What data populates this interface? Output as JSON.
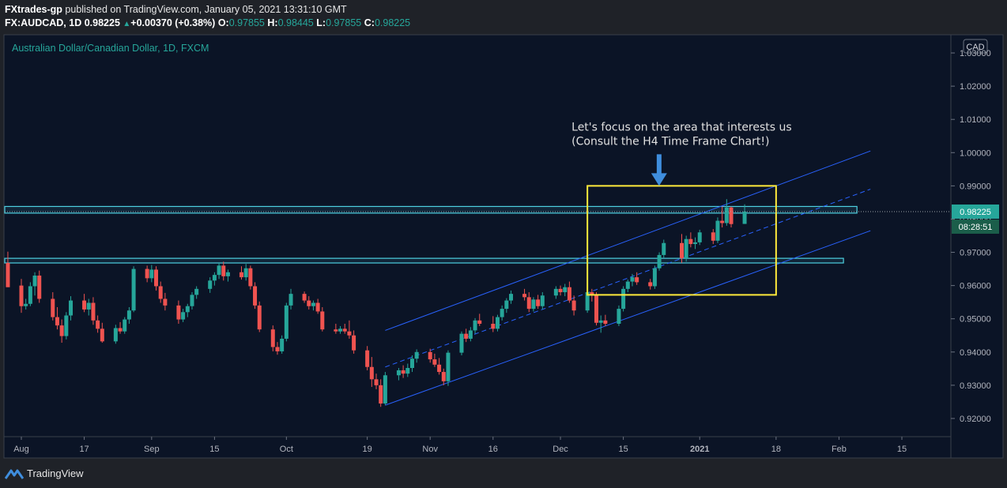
{
  "header": {
    "publisher": "FXtrades-gp",
    "published_text": "published on TradingView.com, January 05, 2021 13:31:10 GMT",
    "symbol": "FX:AUDCAD, 1D",
    "last": "0.98225",
    "change": "+0.00370 (+0.38%)",
    "o_label": "O:",
    "o": "0.97855",
    "h_label": "H:",
    "h": "0.98445",
    "l_label": "L:",
    "l": "0.97855",
    "c_label": "C:",
    "c": "0.98225"
  },
  "footer": {
    "brand": "TradingView"
  },
  "colors": {
    "bg": "#0b1426",
    "up": "#26a69a",
    "down": "#ef5350",
    "channel": "#2962ff",
    "zone": "#4dd0e1",
    "box": "#ffeb3b",
    "arrow": "#3f8ede",
    "text": "#e0e0e0"
  },
  "chart_data": {
    "type": "candlestick",
    "title": "Australian Dollar/Canadian Dollar, 1D, FXCM",
    "currency": "CAD",
    "ylim": [
      0.915,
      1.035
    ],
    "y_ticks": [
      "1.03000",
      "1.02000",
      "1.01000",
      "1.00000",
      "0.99000",
      "0.98000",
      "0.97000",
      "0.96000",
      "0.95000",
      "0.94000",
      "0.93000",
      "0.92000"
    ],
    "x_ticks": [
      {
        "label": "Aug",
        "date": "2020-08-03"
      },
      {
        "label": "17",
        "date": "2020-08-17"
      },
      {
        "label": "Sep",
        "date": "2020-09-01"
      },
      {
        "label": "15",
        "date": "2020-09-15"
      },
      {
        "label": "Oct",
        "date": "2020-10-01"
      },
      {
        "label": "19",
        "date": "2020-10-19"
      },
      {
        "label": "Nov",
        "date": "2020-11-02"
      },
      {
        "label": "16",
        "date": "2020-11-16"
      },
      {
        "label": "Dec",
        "date": "2020-12-01"
      },
      {
        "label": "15",
        "date": "2020-12-15"
      },
      {
        "label": "2021",
        "date": "2021-01-01"
      },
      {
        "label": "18",
        "date": "2021-01-18"
      },
      {
        "label": "Feb",
        "date": "2021-02-01"
      },
      {
        "label": "15",
        "date": "2021-02-15"
      }
    ],
    "last_price": "0.98225",
    "countdown": "08:28:51",
    "candles": [
      {
        "t": "2020-07-31",
        "o": 0.9668,
        "h": 0.9702,
        "l": 0.9605,
        "c": 0.9595
      },
      {
        "t": "2020-08-03",
        "o": 0.96,
        "h": 0.962,
        "l": 0.9518,
        "c": 0.9538
      },
      {
        "t": "2020-08-04",
        "o": 0.9538,
        "h": 0.956,
        "l": 0.9528,
        "c": 0.9545
      },
      {
        "t": "2020-08-05",
        "o": 0.9545,
        "h": 0.961,
        "l": 0.9538,
        "c": 0.9598
      },
      {
        "t": "2020-08-06",
        "o": 0.9598,
        "h": 0.964,
        "l": 0.957,
        "c": 0.963
      },
      {
        "t": "2020-08-07",
        "o": 0.963,
        "h": 0.9645,
        "l": 0.9548,
        "c": 0.956
      },
      {
        "t": "2020-08-10",
        "o": 0.956,
        "h": 0.958,
        "l": 0.9495,
        "c": 0.9505
      },
      {
        "t": "2020-08-11",
        "o": 0.9505,
        "h": 0.9535,
        "l": 0.9468,
        "c": 0.948
      },
      {
        "t": "2020-08-12",
        "o": 0.948,
        "h": 0.9498,
        "l": 0.9428,
        "c": 0.9448
      },
      {
        "t": "2020-08-13",
        "o": 0.9448,
        "h": 0.952,
        "l": 0.9438,
        "c": 0.951
      },
      {
        "t": "2020-08-14",
        "o": 0.951,
        "h": 0.9568,
        "l": 0.9495,
        "c": 0.9555
      },
      {
        "t": "2020-08-17",
        "o": 0.9555,
        "h": 0.9575,
        "l": 0.952,
        "c": 0.9528
      },
      {
        "t": "2020-08-18",
        "o": 0.9528,
        "h": 0.956,
        "l": 0.951,
        "c": 0.9548
      },
      {
        "t": "2020-08-19",
        "o": 0.9548,
        "h": 0.9565,
        "l": 0.9482,
        "c": 0.9495
      },
      {
        "t": "2020-08-20",
        "o": 0.9495,
        "h": 0.951,
        "l": 0.9458,
        "c": 0.947
      },
      {
        "t": "2020-08-21",
        "o": 0.947,
        "h": 0.9488,
        "l": 0.9428,
        "c": 0.9432
      },
      {
        "t": "2020-08-24",
        "o": 0.9432,
        "h": 0.9482,
        "l": 0.9425,
        "c": 0.9472
      },
      {
        "t": "2020-08-25",
        "o": 0.9472,
        "h": 0.949,
        "l": 0.9455,
        "c": 0.9462
      },
      {
        "t": "2020-08-26",
        "o": 0.9462,
        "h": 0.9505,
        "l": 0.9455,
        "c": 0.9498
      },
      {
        "t": "2020-08-27",
        "o": 0.9498,
        "h": 0.9535,
        "l": 0.9485,
        "c": 0.9525
      },
      {
        "t": "2020-08-28",
        "o": 0.9525,
        "h": 0.9658,
        "l": 0.952,
        "c": 0.965
      },
      {
        "t": "2020-08-31",
        "o": 0.965,
        "h": 0.966,
        "l": 0.961,
        "c": 0.9622
      },
      {
        "t": "2020-09-01",
        "o": 0.9622,
        "h": 0.9662,
        "l": 0.961,
        "c": 0.9648
      },
      {
        "t": "2020-09-02",
        "o": 0.9648,
        "h": 0.9658,
        "l": 0.9585,
        "c": 0.9598
      },
      {
        "t": "2020-09-03",
        "o": 0.9598,
        "h": 0.9612,
        "l": 0.9548,
        "c": 0.956
      },
      {
        "t": "2020-09-04",
        "o": 0.956,
        "h": 0.9578,
        "l": 0.9525,
        "c": 0.954
      },
      {
        "t": "2020-09-07",
        "o": 0.954,
        "h": 0.9555,
        "l": 0.9485,
        "c": 0.9498
      },
      {
        "t": "2020-09-08",
        "o": 0.9498,
        "h": 0.953,
        "l": 0.949,
        "c": 0.952
      },
      {
        "t": "2020-09-09",
        "o": 0.952,
        "h": 0.9545,
        "l": 0.9505,
        "c": 0.9538
      },
      {
        "t": "2020-09-10",
        "o": 0.9538,
        "h": 0.958,
        "l": 0.9528,
        "c": 0.9572
      },
      {
        "t": "2020-09-11",
        "o": 0.9572,
        "h": 0.9598,
        "l": 0.956,
        "c": 0.959
      },
      {
        "t": "2020-09-14",
        "o": 0.959,
        "h": 0.9625,
        "l": 0.9578,
        "c": 0.9615
      },
      {
        "t": "2020-09-15",
        "o": 0.9615,
        "h": 0.964,
        "l": 0.96,
        "c": 0.9632
      },
      {
        "t": "2020-09-16",
        "o": 0.9632,
        "h": 0.9668,
        "l": 0.962,
        "c": 0.966
      },
      {
        "t": "2020-09-17",
        "o": 0.966,
        "h": 0.9672,
        "l": 0.9615,
        "c": 0.9628
      },
      {
        "t": "2020-09-18",
        "o": 0.9628,
        "h": 0.9648,
        "l": 0.9612,
        "c": 0.964
      },
      {
        "t": "2020-09-21",
        "o": 0.964,
        "h": 0.9658,
        "l": 0.9618,
        "c": 0.9625
      },
      {
        "t": "2020-09-22",
        "o": 0.9625,
        "h": 0.9665,
        "l": 0.9615,
        "c": 0.9652
      },
      {
        "t": "2020-09-23",
        "o": 0.9652,
        "h": 0.966,
        "l": 0.9588,
        "c": 0.9598
      },
      {
        "t": "2020-09-24",
        "o": 0.9598,
        "h": 0.961,
        "l": 0.953,
        "c": 0.954
      },
      {
        "t": "2020-09-25",
        "o": 0.954,
        "h": 0.9552,
        "l": 0.946,
        "c": 0.9468
      },
      {
        "t": "2020-09-28",
        "o": 0.9468,
        "h": 0.948,
        "l": 0.9402,
        "c": 0.9415
      },
      {
        "t": "2020-09-29",
        "o": 0.9415,
        "h": 0.943,
        "l": 0.9392,
        "c": 0.9402
      },
      {
        "t": "2020-09-30",
        "o": 0.9402,
        "h": 0.945,
        "l": 0.9395,
        "c": 0.944
      },
      {
        "t": "2020-10-01",
        "o": 0.944,
        "h": 0.9548,
        "l": 0.9432,
        "c": 0.954
      },
      {
        "t": "2020-10-02",
        "o": 0.954,
        "h": 0.959,
        "l": 0.9528,
        "c": 0.9575
      },
      {
        "t": "2020-10-05",
        "o": 0.9575,
        "h": 0.9582,
        "l": 0.9548,
        "c": 0.9555
      },
      {
        "t": "2020-10-06",
        "o": 0.9555,
        "h": 0.9568,
        "l": 0.9528,
        "c": 0.9538
      },
      {
        "t": "2020-10-07",
        "o": 0.9538,
        "h": 0.9555,
        "l": 0.9525,
        "c": 0.9548
      },
      {
        "t": "2020-10-08",
        "o": 0.9548,
        "h": 0.956,
        "l": 0.9515,
        "c": 0.9522
      },
      {
        "t": "2020-10-09",
        "o": 0.9522,
        "h": 0.9535,
        "l": 0.9462,
        "c": 0.9468
      },
      {
        "t": "2020-10-12",
        "o": 0.9468,
        "h": 0.9485,
        "l": 0.9455,
        "c": 0.9462
      },
      {
        "t": "2020-10-13",
        "o": 0.9462,
        "h": 0.9478,
        "l": 0.9455,
        "c": 0.947
      },
      {
        "t": "2020-10-14",
        "o": 0.947,
        "h": 0.9485,
        "l": 0.9455,
        "c": 0.9462
      },
      {
        "t": "2020-10-15",
        "o": 0.9462,
        "h": 0.9495,
        "l": 0.944,
        "c": 0.945
      },
      {
        "t": "2020-10-16",
        "o": 0.945,
        "h": 0.9465,
        "l": 0.9395,
        "c": 0.9405
      },
      {
        "t": "2020-10-19",
        "o": 0.9405,
        "h": 0.9418,
        "l": 0.9345,
        "c": 0.9355
      },
      {
        "t": "2020-10-20",
        "o": 0.9355,
        "h": 0.9385,
        "l": 0.9295,
        "c": 0.9318
      },
      {
        "t": "2020-10-21",
        "o": 0.9318,
        "h": 0.9335,
        "l": 0.9288,
        "c": 0.93
      },
      {
        "t": "2020-10-22",
        "o": 0.93,
        "h": 0.9318,
        "l": 0.9235,
        "c": 0.9245
      },
      {
        "t": "2020-10-23",
        "o": 0.9245,
        "h": 0.934,
        "l": 0.924,
        "c": 0.933
      },
      {
        "t": "2020-10-26",
        "o": 0.933,
        "h": 0.9352,
        "l": 0.9315,
        "c": 0.9345
      },
      {
        "t": "2020-10-27",
        "o": 0.9345,
        "h": 0.936,
        "l": 0.9322,
        "c": 0.9335
      },
      {
        "t": "2020-10-28",
        "o": 0.9335,
        "h": 0.9365,
        "l": 0.9325,
        "c": 0.9352
      },
      {
        "t": "2020-10-29",
        "o": 0.9352,
        "h": 0.939,
        "l": 0.934,
        "c": 0.938
      },
      {
        "t": "2020-10-30",
        "o": 0.938,
        "h": 0.9408,
        "l": 0.9368,
        "c": 0.94
      },
      {
        "t": "2020-11-02",
        "o": 0.94,
        "h": 0.941,
        "l": 0.9368,
        "c": 0.9378
      },
      {
        "t": "2020-11-03",
        "o": 0.9378,
        "h": 0.9395,
        "l": 0.9355,
        "c": 0.9362
      },
      {
        "t": "2020-11-04",
        "o": 0.9362,
        "h": 0.9382,
        "l": 0.9332,
        "c": 0.934
      },
      {
        "t": "2020-11-05",
        "o": 0.934,
        "h": 0.935,
        "l": 0.93,
        "c": 0.9312
      },
      {
        "t": "2020-11-06",
        "o": 0.9312,
        "h": 0.9405,
        "l": 0.9298,
        "c": 0.9398
      },
      {
        "t": "2020-11-09",
        "o": 0.9398,
        "h": 0.9462,
        "l": 0.939,
        "c": 0.9455
      },
      {
        "t": "2020-11-10",
        "o": 0.9455,
        "h": 0.947,
        "l": 0.943,
        "c": 0.944
      },
      {
        "t": "2020-11-11",
        "o": 0.944,
        "h": 0.9475,
        "l": 0.9432,
        "c": 0.9465
      },
      {
        "t": "2020-11-12",
        "o": 0.9465,
        "h": 0.9502,
        "l": 0.9455,
        "c": 0.9495
      },
      {
        "t": "2020-11-13",
        "o": 0.9495,
        "h": 0.9515,
        "l": 0.9478,
        "c": 0.9485
      },
      {
        "t": "2020-11-16",
        "o": 0.9485,
        "h": 0.9508,
        "l": 0.946,
        "c": 0.947
      },
      {
        "t": "2020-11-17",
        "o": 0.947,
        "h": 0.9512,
        "l": 0.9462,
        "c": 0.9505
      },
      {
        "t": "2020-11-18",
        "o": 0.9505,
        "h": 0.954,
        "l": 0.9495,
        "c": 0.953
      },
      {
        "t": "2020-11-19",
        "o": 0.953,
        "h": 0.9562,
        "l": 0.9518,
        "c": 0.9555
      },
      {
        "t": "2020-11-20",
        "o": 0.9555,
        "h": 0.9585,
        "l": 0.9545,
        "c": 0.9575
      },
      {
        "t": "2020-11-23",
        "o": 0.9575,
        "h": 0.959,
        "l": 0.9555,
        "c": 0.9565
      },
      {
        "t": "2020-11-24",
        "o": 0.9565,
        "h": 0.958,
        "l": 0.952,
        "c": 0.953
      },
      {
        "t": "2020-11-25",
        "o": 0.953,
        "h": 0.9565,
        "l": 0.9522,
        "c": 0.9558
      },
      {
        "t": "2020-11-26",
        "o": 0.9558,
        "h": 0.9572,
        "l": 0.953,
        "c": 0.9538
      },
      {
        "t": "2020-11-27",
        "o": 0.9538,
        "h": 0.958,
        "l": 0.9528,
        "c": 0.957
      },
      {
        "t": "2020-11-30",
        "o": 0.957,
        "h": 0.9598,
        "l": 0.956,
        "c": 0.959
      },
      {
        "t": "2020-12-01",
        "o": 0.959,
        "h": 0.96,
        "l": 0.957,
        "c": 0.958
      },
      {
        "t": "2020-12-02",
        "o": 0.958,
        "h": 0.9605,
        "l": 0.9568,
        "c": 0.9595
      },
      {
        "t": "2020-12-03",
        "o": 0.9595,
        "h": 0.9612,
        "l": 0.9548,
        "c": 0.9555
      },
      {
        "t": "2020-12-04",
        "o": 0.9555,
        "h": 0.957,
        "l": 0.951,
        "c": 0.9525
      },
      {
        "t": "2020-12-07",
        "o": 0.9525,
        "h": 0.9588,
        "l": 0.9518,
        "c": 0.958
      },
      {
        "t": "2020-12-08",
        "o": 0.958,
        "h": 0.959,
        "l": 0.9552,
        "c": 0.9572
      },
      {
        "t": "2020-12-09",
        "o": 0.9572,
        "h": 0.958,
        "l": 0.948,
        "c": 0.9488
      },
      {
        "t": "2020-12-10",
        "o": 0.9488,
        "h": 0.951,
        "l": 0.9458,
        "c": 0.9495
      },
      {
        "t": "2020-12-11",
        "o": 0.9495,
        "h": 0.9512,
        "l": 0.9478,
        "c": 0.9485
      },
      {
        "t": "2020-12-14",
        "o": 0.9485,
        "h": 0.954,
        "l": 0.9478,
        "c": 0.953
      },
      {
        "t": "2020-12-15",
        "o": 0.953,
        "h": 0.9598,
        "l": 0.9522,
        "c": 0.959
      },
      {
        "t": "2020-12-16",
        "o": 0.959,
        "h": 0.9618,
        "l": 0.958,
        "c": 0.9612
      },
      {
        "t": "2020-12-17",
        "o": 0.9612,
        "h": 0.9635,
        "l": 0.9598,
        "c": 0.9625
      },
      {
        "t": "2020-12-18",
        "o": 0.9625,
        "h": 0.964,
        "l": 0.9602,
        "c": 0.961
      },
      {
        "t": "2020-12-21",
        "o": 0.961,
        "h": 0.962,
        "l": 0.9588,
        "c": 0.9598
      },
      {
        "t": "2020-12-22",
        "o": 0.9598,
        "h": 0.966,
        "l": 0.959,
        "c": 0.9652
      },
      {
        "t": "2020-12-23",
        "o": 0.9652,
        "h": 0.97,
        "l": 0.9645,
        "c": 0.9692
      },
      {
        "t": "2020-12-24",
        "o": 0.9692,
        "h": 0.9738,
        "l": 0.9682,
        "c": 0.9728
      },
      {
        "t": "2020-12-28",
        "o": 0.9728,
        "h": 0.9755,
        "l": 0.9668,
        "c": 0.9682
      },
      {
        "t": "2020-12-29",
        "o": 0.9682,
        "h": 0.975,
        "l": 0.9672,
        "c": 0.974
      },
      {
        "t": "2020-12-30",
        "o": 0.974,
        "h": 0.976,
        "l": 0.9715,
        "c": 0.9725
      },
      {
        "t": "2020-12-31",
        "o": 0.9725,
        "h": 0.9745,
        "l": 0.971,
        "c": 0.973
      },
      {
        "t": "2021-01-01",
        "o": 0.973,
        "h": 0.9768,
        "l": 0.9722,
        "c": 0.976
      },
      {
        "t": "2021-01-04",
        "o": 0.976,
        "h": 0.977,
        "l": 0.9725,
        "c": 0.9735
      },
      {
        "t": "2021-01-05",
        "o": 0.9735,
        "h": 0.9805,
        "l": 0.9728,
        "c": 0.9795
      },
      {
        "t": "2021-01-06",
        "o": 0.9795,
        "h": 0.9838,
        "l": 0.9775,
        "c": 0.9788
      },
      {
        "t": "2021-01-07",
        "o": 0.9788,
        "h": 0.986,
        "l": 0.978,
        "c": 0.9835
      },
      {
        "t": "2021-01-08",
        "o": 0.9835,
        "h": 0.9838,
        "l": 0.9775,
        "c": 0.9785
      },
      {
        "t": "2021-01-11",
        "o": 0.97855,
        "h": 0.98445,
        "l": 0.97855,
        "c": 0.98225
      }
    ],
    "zones": [
      {
        "from": 0.9818,
        "to": 0.9838
      },
      {
        "from": 0.9668,
        "to": 0.9682
      }
    ],
    "channel": {
      "x_from": "2020-10-23",
      "x_to": "2021-02-08",
      "upper": [
        0.9465,
        1.0005
      ],
      "middle": [
        0.9355,
        0.989
      ],
      "lower": [
        0.924,
        0.9765
      ]
    },
    "focus_box": {
      "x_from": "2020-12-07",
      "x_to": "2021-01-18",
      "y_from": 0.9572,
      "y_to": 0.99
    },
    "annotation": {
      "lines": [
        "Let's focus on the area that interests us",
        "(Consult the H4 Time Frame Chart!)"
      ]
    }
  }
}
